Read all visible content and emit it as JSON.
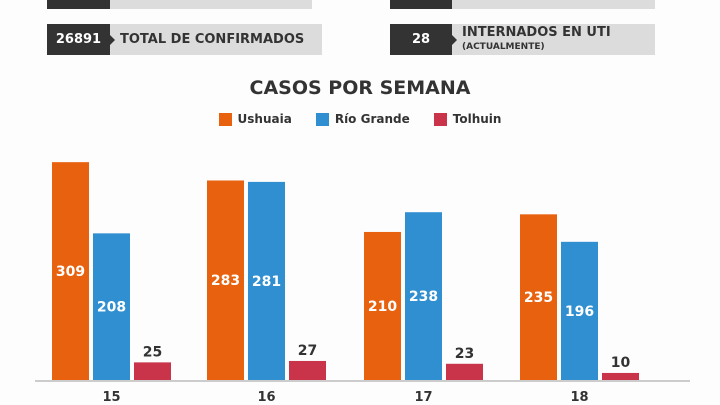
{
  "stats": [
    {
      "value": "26891",
      "label": "TOTAL DE CONFIRMADOS",
      "sublabel": ""
    },
    {
      "value": "28",
      "label": "INTERNADOS EN UTI",
      "sublabel": "(ACTUALMENTE)"
    }
  ],
  "chart_data": {
    "type": "bar",
    "title": "CASOS POR SEMANA",
    "categories": [
      "15",
      "16",
      "17",
      "18"
    ],
    "series": [
      {
        "name": "Ushuaia",
        "color": "#e8610f",
        "values": [
          309,
          283,
          210,
          235
        ]
      },
      {
        "name": "Río Grande",
        "color": "#2f8fd0",
        "values": [
          208,
          281,
          238,
          196
        ]
      },
      {
        "name": "Tolhuin",
        "color": "#c9344b",
        "values": [
          25,
          27,
          23,
          10
        ]
      }
    ],
    "legend": "top-center",
    "grid": false,
    "ylim": [
      0,
      320
    ]
  }
}
